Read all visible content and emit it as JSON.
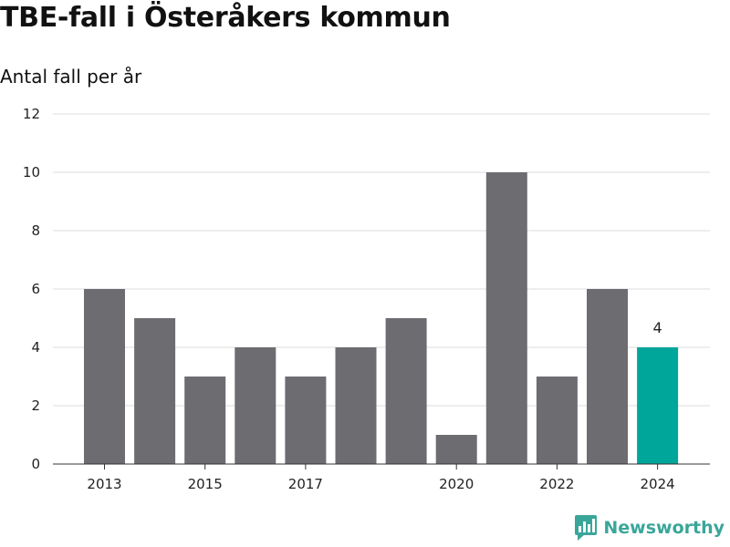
{
  "title": "TBE-fall i Österåkers kommun",
  "subtitle": "Antal fall per år",
  "brand": "Newsworthy",
  "colors": {
    "bar": "#6d6c71",
    "highlight": "#00a699",
    "grid": "#dddddd",
    "axis": "#333333",
    "brand": "#3aa69a"
  },
  "chart_data": {
    "type": "bar",
    "categories": [
      "2013",
      "2014",
      "2015",
      "2016",
      "2017",
      "2018",
      "2019",
      "2020",
      "2021",
      "2022",
      "2023",
      "2024"
    ],
    "values": [
      6,
      5,
      3,
      4,
      3,
      4,
      5,
      1,
      10,
      3,
      6,
      4
    ],
    "shown_x_labels": [
      "2013",
      "2015",
      "2017",
      "2020",
      "2022",
      "2024"
    ],
    "ylim": [
      0,
      12
    ],
    "yticks": [
      0,
      2,
      4,
      6,
      8,
      10,
      12
    ],
    "highlight_category": "2024",
    "data_labels": [
      {
        "category": "2024",
        "text": "4"
      }
    ],
    "grid": true,
    "legend": "none"
  }
}
